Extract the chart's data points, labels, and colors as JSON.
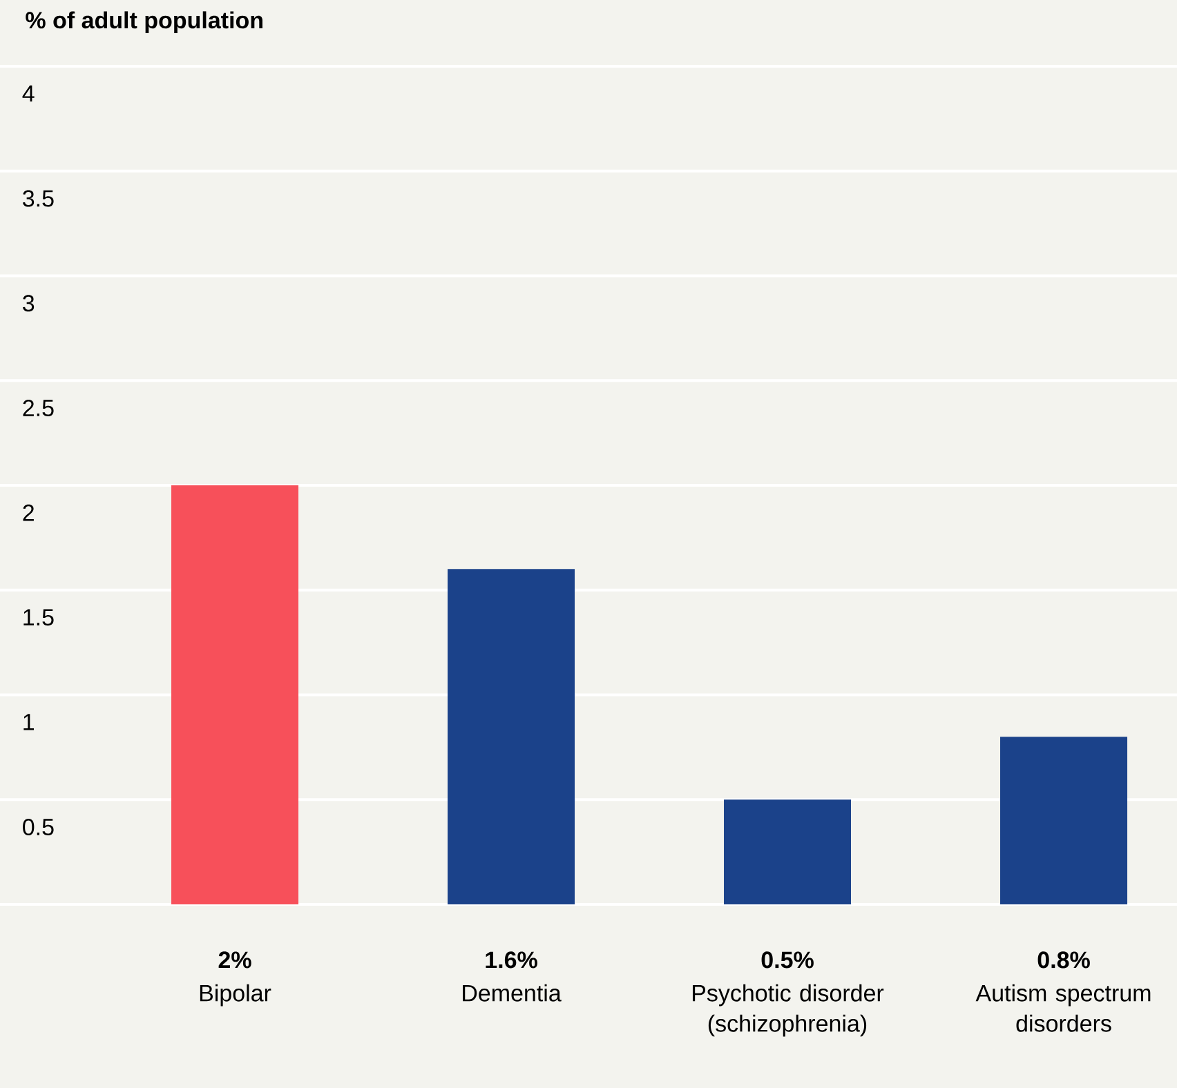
{
  "chart_data": {
    "type": "bar",
    "ylabel": "% of adult population",
    "categories": [
      "Bipolar",
      "Dementia",
      "Psychotic disorder (schizophrenia)",
      "Autism spectrum disorders"
    ],
    "values": [
      2,
      1.6,
      0.5,
      0.8
    ],
    "value_labels": [
      "2%",
      "1.6%",
      "0.5%",
      "0.8%"
    ],
    "colors": [
      "#f7505a",
      "#1b428a",
      "#1b428a",
      "#1b428a"
    ],
    "ylim": [
      0,
      4
    ],
    "yticks": [
      0.5,
      1,
      1.5,
      2,
      2.5,
      3,
      3.5,
      4
    ],
    "grid": "y"
  }
}
